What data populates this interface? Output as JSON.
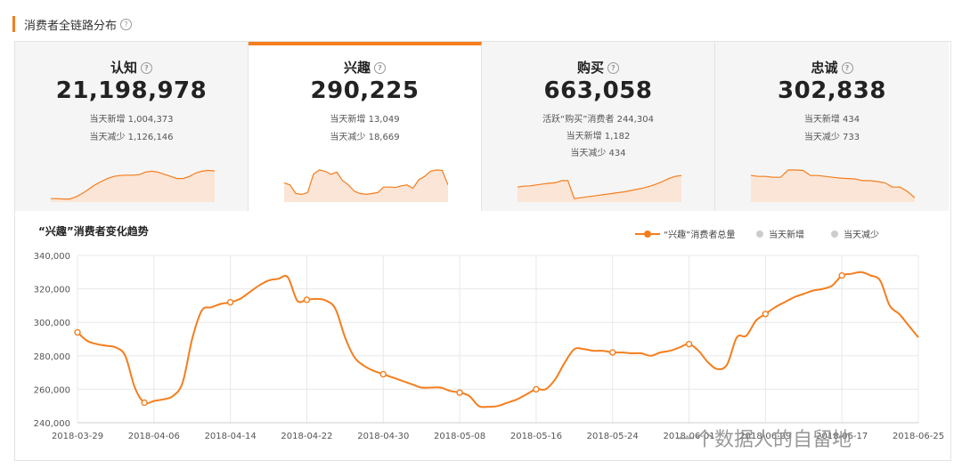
{
  "section": {
    "title": "消费者全链路分布",
    "help_icon": "question-icon"
  },
  "cards": [
    {
      "key": "awareness",
      "title": "认知",
      "value": "21,198,978",
      "lines": [
        "当天新增 1,004,373",
        "当天减少 1,126,146"
      ],
      "active": false
    },
    {
      "key": "interest",
      "title": "兴趣",
      "value": "290,225",
      "lines": [
        "当天新增 13,049",
        "当天减少 18,669"
      ],
      "active": true
    },
    {
      "key": "purchase",
      "title": "购买",
      "value": "663,058",
      "lines": [
        "活跃“购买”消费者 244,304",
        "当天新增 1,182",
        "当天减少 434"
      ],
      "active": false
    },
    {
      "key": "loyalty",
      "title": "忠诚",
      "value": "302,838",
      "lines": [
        "当天新增 434",
        "当天减少 733"
      ],
      "active": false
    }
  ],
  "sparklines": {
    "awareness": [
      0.08,
      0.08,
      0.07,
      0.07,
      0.12,
      0.2,
      0.3,
      0.4,
      0.48,
      0.55,
      0.6,
      0.62,
      0.63,
      0.63,
      0.64,
      0.7,
      0.72,
      0.7,
      0.65,
      0.6,
      0.55,
      0.55,
      0.6,
      0.68,
      0.72,
      0.74,
      0.73
    ],
    "interest": [
      0.45,
      0.4,
      0.2,
      0.18,
      0.22,
      0.65,
      0.75,
      0.72,
      0.65,
      0.7,
      0.5,
      0.4,
      0.25,
      0.2,
      0.18,
      0.2,
      0.22,
      0.35,
      0.35,
      0.34,
      0.38,
      0.4,
      0.32,
      0.52,
      0.6,
      0.72,
      0.75,
      0.74,
      0.4
    ],
    "purchase": [
      0.35,
      0.37,
      0.38,
      0.4,
      0.42,
      0.44,
      0.45,
      0.5,
      0.5,
      0.08,
      0.1,
      0.12,
      0.14,
      0.16,
      0.18,
      0.2,
      0.22,
      0.24,
      0.27,
      0.3,
      0.33,
      0.37,
      0.42,
      0.48,
      0.55,
      0.6,
      0.62
    ],
    "loyalty": [
      0.62,
      0.6,
      0.6,
      0.58,
      0.58,
      0.75,
      0.75,
      0.74,
      0.62,
      0.62,
      0.6,
      0.58,
      0.56,
      0.55,
      0.54,
      0.5,
      0.5,
      0.48,
      0.45,
      0.35,
      0.35,
      0.25,
      0.1
    ]
  },
  "chart_title": "“兴趣”消费者变化趋势",
  "legend": [
    {
      "label": "“兴趣”消费者总量",
      "color": "#f47e1e",
      "active": true
    },
    {
      "label": "当天新增",
      "color": "#cccccc",
      "active": false
    },
    {
      "label": "当天减少",
      "color": "#cccccc",
      "active": false
    }
  ],
  "watermark": "一个数据人的自留地",
  "colors": {
    "accent": "#f47e1e",
    "fill": "#fbe5d6",
    "grid": "#e8e8e8"
  },
  "chart_data": {
    "type": "line",
    "title": "“兴趣”消费者变化趋势",
    "ylim": [
      240000,
      340000
    ],
    "yticks": [
      "340,000",
      "320,000",
      "300,000",
      "280,000",
      "260,000",
      "240,000"
    ],
    "xticks": [
      "2018-03-29",
      "2018-04-06",
      "2018-04-14",
      "2018-04-22",
      "2018-04-30",
      "2018-05-08",
      "2018-05-16",
      "2018-05-24",
      "2018-06-01",
      "2018-06-09",
      "2018-06-17",
      "2018-06-25"
    ],
    "x_range_days": 88,
    "series": [
      {
        "name": "“兴趣”消费者总量",
        "points": [
          [
            0,
            294000
          ],
          [
            1,
            289000
          ],
          [
            2,
            287000
          ],
          [
            3,
            286000
          ],
          [
            4,
            285000
          ],
          [
            5,
            280000
          ],
          [
            6,
            261000
          ],
          [
            7,
            252000
          ],
          [
            8,
            253000
          ],
          [
            9,
            254000
          ],
          [
            10,
            256000
          ],
          [
            11,
            264000
          ],
          [
            12,
            290000
          ],
          [
            13,
            307000
          ],
          [
            14,
            309000
          ],
          [
            15,
            311000
          ],
          [
            16,
            312000
          ],
          [
            17,
            314000
          ],
          [
            18,
            318000
          ],
          [
            19,
            322000
          ],
          [
            20,
            325000
          ],
          [
            21,
            326000
          ],
          [
            22,
            327000
          ],
          [
            23,
            313000
          ],
          [
            24,
            313500
          ],
          [
            25,
            314000
          ],
          [
            26,
            313000
          ],
          [
            27,
            308000
          ],
          [
            28,
            291000
          ],
          [
            29,
            279000
          ],
          [
            30,
            274000
          ],
          [
            31,
            271000
          ],
          [
            32,
            269000
          ],
          [
            33,
            267000
          ],
          [
            34,
            265000
          ],
          [
            35,
            263000
          ],
          [
            36,
            261000
          ],
          [
            37,
            261000
          ],
          [
            38,
            261000
          ],
          [
            39,
            259000
          ],
          [
            40,
            258000
          ],
          [
            41,
            256000
          ],
          [
            42,
            250000
          ],
          [
            43,
            249500
          ],
          [
            44,
            250000
          ],
          [
            45,
            252000
          ],
          [
            46,
            254000
          ],
          [
            47,
            257000
          ],
          [
            48,
            260000
          ],
          [
            49,
            260000
          ],
          [
            50,
            266000
          ],
          [
            51,
            276000
          ],
          [
            52,
            284000
          ],
          [
            53,
            284000
          ],
          [
            54,
            283000
          ],
          [
            55,
            283000
          ],
          [
            56,
            282000
          ],
          [
            57,
            282000
          ],
          [
            58,
            281500
          ],
          [
            59,
            281500
          ],
          [
            60,
            280000
          ],
          [
            61,
            282000
          ],
          [
            62,
            283000
          ],
          [
            63,
            285000
          ],
          [
            64,
            287000
          ],
          [
            65,
            283000
          ],
          [
            66,
            276000
          ],
          [
            67,
            272000
          ],
          [
            68,
            275000
          ],
          [
            69,
            291000
          ],
          [
            70,
            292000
          ],
          [
            71,
            301000
          ],
          [
            72,
            305000
          ],
          [
            73,
            309000
          ],
          [
            74,
            312000
          ],
          [
            75,
            315000
          ],
          [
            76,
            317000
          ],
          [
            77,
            319000
          ],
          [
            78,
            320000
          ],
          [
            79,
            322000
          ],
          [
            80,
            328000
          ],
          [
            81,
            329000
          ],
          [
            82,
            330000
          ],
          [
            83,
            328000
          ],
          [
            84,
            325000
          ],
          [
            85,
            310000
          ],
          [
            86,
            305000
          ],
          [
            87,
            298000
          ],
          [
            88,
            291000
          ]
        ],
        "markers": [
          0,
          7,
          16,
          24,
          32,
          40,
          48,
          56,
          64,
          72,
          80
        ]
      }
    ]
  }
}
